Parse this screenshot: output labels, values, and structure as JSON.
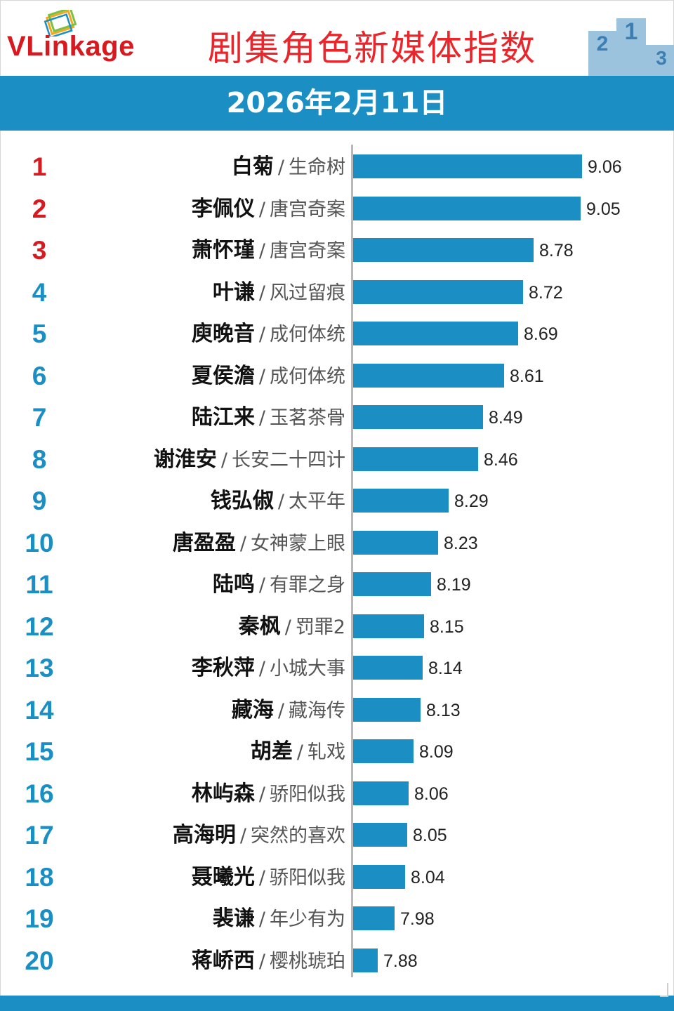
{
  "brand": {
    "logo_v": "V",
    "logo_rest": "Linkage",
    "title": "剧集角色新媒体指数",
    "date": "2026年2月11日",
    "podium_digits": [
      "2",
      "1",
      "3"
    ],
    "colors": {
      "band": "#1b8fc3",
      "title": "#e8262c",
      "rank_top": "#d71920",
      "rank": "#1b8fc3"
    }
  },
  "chart_data": {
    "type": "bar",
    "orientation": "horizontal",
    "title": "剧集角色新媒体指数",
    "xlim": [
      0,
      9.2
    ],
    "rows": [
      {
        "rank": "1",
        "name": "白菊",
        "drama": "生命树",
        "value": 9.06,
        "value_label": "9.06"
      },
      {
        "rank": "2",
        "name": "李佩仪",
        "drama": "唐宫奇案",
        "value": 9.05,
        "value_label": "9.05"
      },
      {
        "rank": "3",
        "name": "萧怀瑾",
        "drama": "唐宫奇案",
        "value": 8.78,
        "value_label": "8.78"
      },
      {
        "rank": "4",
        "name": "叶谦",
        "drama": "风过留痕",
        "value": 8.72,
        "value_label": "8.72"
      },
      {
        "rank": "5",
        "name": "庾晚音",
        "drama": "成何体统",
        "value": 8.69,
        "value_label": "8.69"
      },
      {
        "rank": "6",
        "name": "夏侯澹",
        "drama": "成何体统",
        "value": 8.61,
        "value_label": "8.61"
      },
      {
        "rank": "7",
        "name": "陆江来",
        "drama": "玉茗茶骨",
        "value": 8.49,
        "value_label": "8.49"
      },
      {
        "rank": "8",
        "name": "谢淮安",
        "drama": "长安二十四计",
        "value": 8.46,
        "value_label": "8.46"
      },
      {
        "rank": "9",
        "name": "钱弘俶",
        "drama": "太平年",
        "value": 8.29,
        "value_label": "8.29"
      },
      {
        "rank": "10",
        "name": "唐盈盈",
        "drama": "女神蒙上眼",
        "value": 8.23,
        "value_label": "8.23"
      },
      {
        "rank": "11",
        "name": "陆鸣",
        "drama": "有罪之身",
        "value": 8.19,
        "value_label": "8.19"
      },
      {
        "rank": "12",
        "name": "秦枫",
        "drama": "罚罪2",
        "value": 8.15,
        "value_label": "8.15"
      },
      {
        "rank": "13",
        "name": "李秋萍",
        "drama": "小城大事",
        "value": 8.14,
        "value_label": "8.14"
      },
      {
        "rank": "14",
        "name": "藏海",
        "drama": "藏海传",
        "value": 8.13,
        "value_label": "8.13"
      },
      {
        "rank": "15",
        "name": "胡差",
        "drama": "轧戏",
        "value": 8.09,
        "value_label": "8.09"
      },
      {
        "rank": "16",
        "name": "林屿森",
        "drama": "骄阳似我",
        "value": 8.06,
        "value_label": "8.06"
      },
      {
        "rank": "17",
        "name": "高海明",
        "drama": "突然的喜欢",
        "value": 8.05,
        "value_label": "8.05"
      },
      {
        "rank": "18",
        "name": "聂曦光",
        "drama": "骄阳似我",
        "value": 8.04,
        "value_label": "8.04"
      },
      {
        "rank": "19",
        "name": "裴谦",
        "drama": "年少有为",
        "value": 7.98,
        "value_label": "7.98"
      },
      {
        "rank": "20",
        "name": "蒋峤西",
        "drama": "樱桃琥珀",
        "value": 7.88,
        "value_label": "7.88"
      }
    ]
  }
}
